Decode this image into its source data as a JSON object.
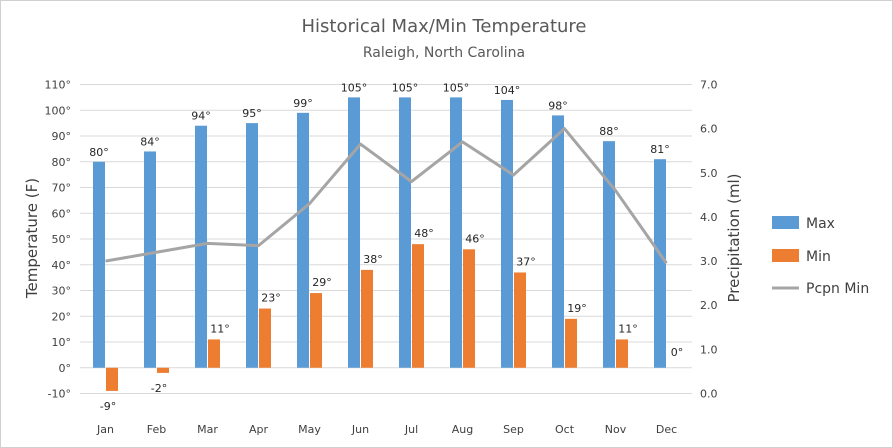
{
  "chart_data": {
    "type": "bar",
    "title": "Historical Max/Min Temperature",
    "subtitle": "Raleigh, North Carolina",
    "categories": [
      "Jan",
      "Feb",
      "Mar",
      "Apr",
      "May",
      "Jun",
      "Jul",
      "Aug",
      "Sep",
      "Oct",
      "Nov",
      "Dec"
    ],
    "series": [
      {
        "name": "Max",
        "type": "bar",
        "axis": "left",
        "color": "#5b9bd5",
        "values": [
          80,
          84,
          94,
          95,
          99,
          105,
          105,
          105,
          104,
          98,
          88,
          81
        ],
        "labels": [
          "80°",
          "84°",
          "94°",
          "95°",
          "99°",
          "105°",
          "105°",
          "105°",
          "104°",
          "98°",
          "88°",
          "81°"
        ]
      },
      {
        "name": "Min",
        "type": "bar",
        "axis": "left",
        "color": "#ed7d31",
        "values": [
          -9,
          -2,
          11,
          23,
          29,
          38,
          48,
          46,
          37,
          19,
          11,
          0
        ],
        "labels": [
          "-9°",
          "-2°",
          "11°",
          "23°",
          "29°",
          "38°",
          "48°",
          "46°",
          "37°",
          "19°",
          "11°",
          "0°"
        ]
      },
      {
        "name": "Pcpn Min",
        "type": "line",
        "axis": "right",
        "color": "#a5a5a5",
        "values": [
          3.0,
          3.2,
          3.4,
          3.35,
          4.3,
          5.65,
          4.8,
          5.7,
          4.95,
          6.0,
          4.6,
          2.95
        ]
      }
    ],
    "y_left": {
      "label": "Temperature (F)",
      "range": [
        -10,
        110
      ],
      "ticks": [
        -10,
        0,
        10,
        20,
        30,
        40,
        50,
        60,
        70,
        80,
        90,
        100,
        110
      ],
      "tick_labels": [
        "-10°",
        "0°",
        "10°",
        "20°",
        "30°",
        "40°",
        "50°",
        "60°",
        "70°",
        "80°",
        "90°",
        "100°",
        "110°"
      ]
    },
    "y_right": {
      "label": "Precipitation (ml)",
      "range": [
        0,
        7
      ],
      "ticks": [
        0,
        1,
        2,
        3,
        4,
        5,
        6,
        7
      ],
      "tick_labels": [
        "0.0",
        "1.0",
        "2.0",
        "3.0",
        "4.0",
        "5.0",
        "6.0",
        "7.0"
      ]
    },
    "grid": true,
    "legend_position": "right"
  }
}
